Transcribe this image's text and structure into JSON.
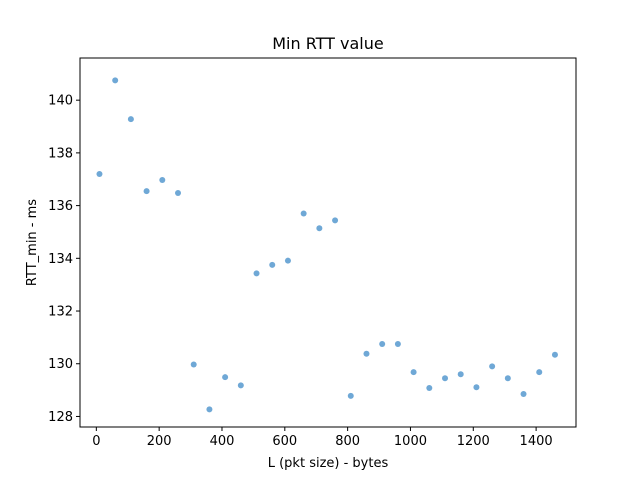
{
  "chart_data": {
    "type": "scatter",
    "title": "Min RTT value",
    "xlabel": "L (pkt size) - bytes",
    "ylabel": "RTT_min - ms",
    "xlim": [
      -52,
      1527
    ],
    "ylim": [
      127.6,
      141.6
    ],
    "xticks": [
      0,
      200,
      400,
      600,
      800,
      1000,
      1200,
      1400
    ],
    "yticks": [
      128,
      130,
      132,
      134,
      136,
      138,
      140
    ],
    "marker_color": "#6fa8d6",
    "series": [
      {
        "name": "RTT_min",
        "x": [
          10,
          60,
          110,
          160,
          210,
          260,
          310,
          360,
          410,
          460,
          510,
          560,
          610,
          660,
          710,
          760,
          810,
          860,
          910,
          960,
          1010,
          1060,
          1110,
          1160,
          1210,
          1260,
          1310,
          1360,
          1410,
          1460
        ],
        "y": [
          137.2,
          140.75,
          139.28,
          136.55,
          136.97,
          136.48,
          129.97,
          128.27,
          129.49,
          129.18,
          133.43,
          133.75,
          133.91,
          135.7,
          135.14,
          135.44,
          128.78,
          130.38,
          130.75,
          130.75,
          129.68,
          129.08,
          129.45,
          129.6,
          129.11,
          129.9,
          129.45,
          128.85,
          129.68,
          130.34
        ]
      }
    ]
  }
}
